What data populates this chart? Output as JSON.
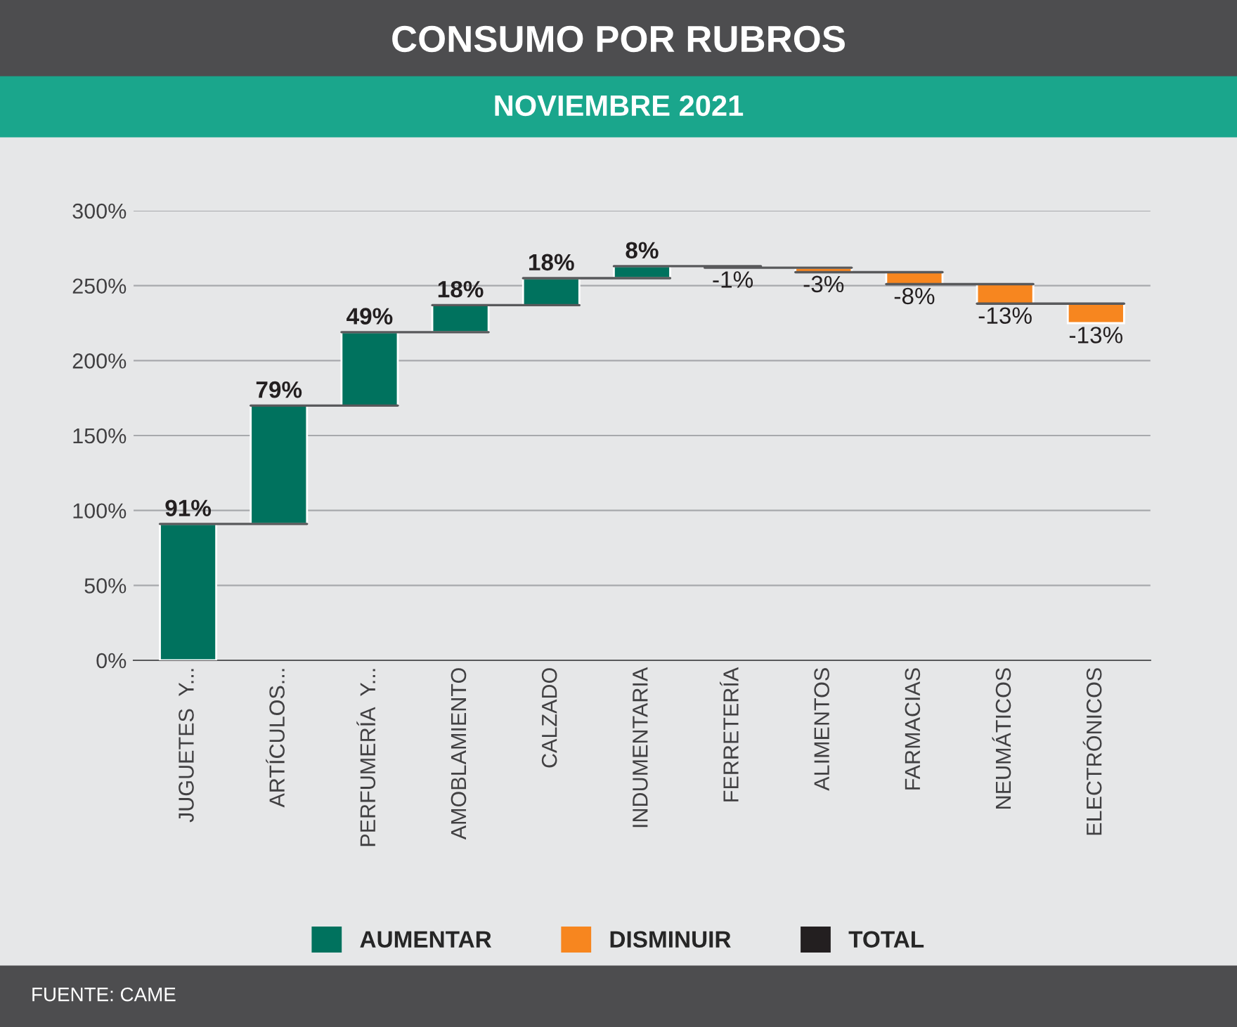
{
  "chart_data": {
    "type": "bar",
    "title": "CONSUMO POR RUBROS",
    "subtitle": "NOVIEMBRE 2021",
    "categories": [
      "JUGUETES  Y...",
      "ARTÍCULOS...",
      "PERFUMERÍA  Y...",
      "AMOBLAMIENTO",
      "CALZADO",
      "INDUMENTARIA",
      "FERRETERÍA",
      "ALIMENTOS",
      "FARMACIAS",
      "NEUMÁTICOS",
      "ELECTRÓNICOS"
    ],
    "series": [
      {
        "name": "AUMENTAR",
        "color": "#00725e",
        "base": [
          0,
          91,
          170,
          219,
          237,
          255,
          null,
          null,
          null,
          null,
          null
        ],
        "values": [
          91,
          79,
          49,
          18,
          18,
          8,
          null,
          null,
          null,
          null,
          null
        ],
        "value_labels": [
          "91%",
          "79%",
          "49%",
          "18%",
          "18%",
          "8%",
          null,
          null,
          null,
          null,
          null
        ]
      },
      {
        "name": "DISMINUIR",
        "color": "#f7861f",
        "base": [
          null,
          null,
          null,
          null,
          null,
          null,
          263,
          262,
          259,
          251,
          238
        ],
        "values": [
          null,
          null,
          null,
          null,
          null,
          null,
          -1,
          -3,
          -8,
          -13,
          -13
        ],
        "value_labels": [
          null,
          null,
          null,
          null,
          null,
          null,
          "-1%",
          "-3%",
          "-8%",
          "-13%",
          "-13%"
        ]
      },
      {
        "name": "TOTAL",
        "color": "#231f20",
        "values": [
          null,
          null,
          null,
          null,
          null,
          null,
          null,
          null,
          null,
          null,
          null
        ]
      }
    ],
    "ylim": [
      0,
      300
    ],
    "yticks": [
      {
        "value": 0,
        "label": "0%"
      },
      {
        "value": 50,
        "label": "50%"
      },
      {
        "value": 100,
        "label": "100%"
      },
      {
        "value": 150,
        "label": "150%"
      },
      {
        "value": 200,
        "label": "200%"
      },
      {
        "value": 250,
        "label": "250%"
      },
      {
        "value": 300,
        "label": "300%"
      }
    ],
    "grid": "y",
    "legend": "bottom",
    "annotations": [
      "FUENTE: CAME"
    ]
  }
}
